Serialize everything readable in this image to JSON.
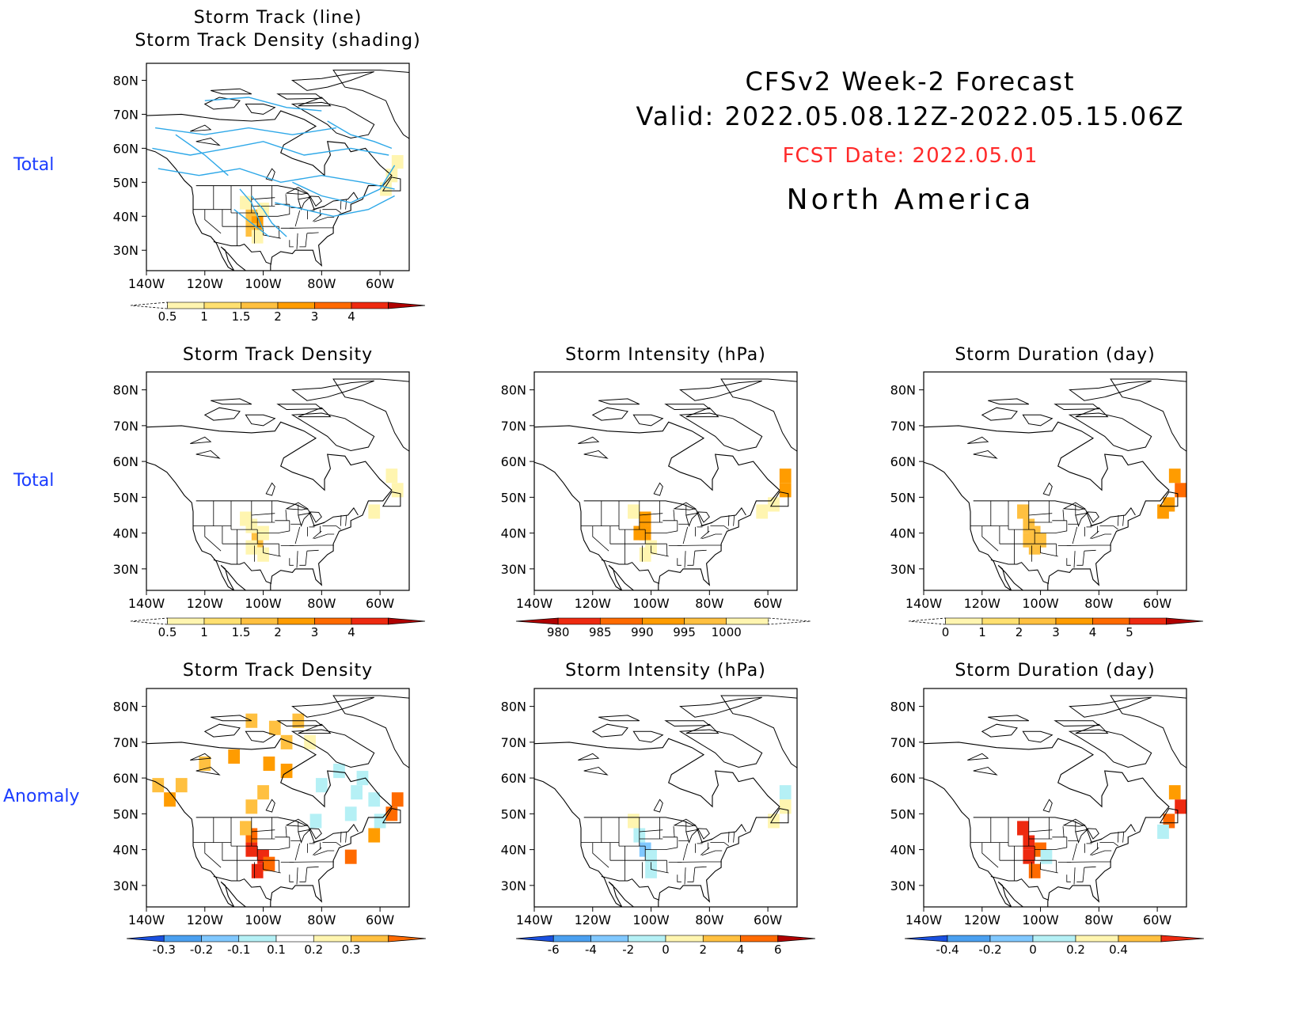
{
  "header": {
    "line1": "CFSv2 Week-2 Forecast",
    "line2": "Valid: 2022.05.08.12Z-2022.05.15.06Z",
    "fcst": "FCST Date: 2022.05.01",
    "region": "North America"
  },
  "row_labels": {
    "r1": "Total",
    "r2": "Total",
    "r3": "Anomaly"
  },
  "axis": {
    "lat_ticks": [
      "80N",
      "70N",
      "60N",
      "50N",
      "40N",
      "30N"
    ],
    "lon_ticks": [
      "140W",
      "120W",
      "100W",
      "80W",
      "60W"
    ]
  },
  "colors": {
    "yellow_light": "#fff5b0",
    "yellow": "#ffe070",
    "orange_light": "#ffc040",
    "orange": "#ff9c00",
    "orange_dark": "#ff6a00",
    "red": "#ee2a10",
    "dark_red": "#b00000",
    "cyan_light": "#b5f0f5",
    "blue_light": "#80c8ff",
    "blue": "#4aa0f0",
    "blue_dark": "#1a50e0",
    "track": "#2ea8e8"
  },
  "chart_data": [
    {
      "type": "heatmap",
      "title": "Storm Track (line)",
      "subtitle": "Storm Track Density (shading)",
      "colorbar_labels": [
        "0.5",
        "1",
        "1.5",
        "2",
        "3",
        "4"
      ],
      "colorbar": "seq",
      "cells": [
        {
          "lon": -104,
          "lat": 40,
          "level": 2
        },
        {
          "lon": -102,
          "lat": 38,
          "level": 3
        },
        {
          "lon": -104,
          "lat": 36,
          "level": 2
        },
        {
          "lon": -100,
          "lat": 42,
          "level": 1
        },
        {
          "lon": -106,
          "lat": 44,
          "level": 1
        },
        {
          "lon": -102,
          "lat": 34,
          "level": 1
        },
        {
          "lon": -56,
          "lat": 52,
          "level": 1
        },
        {
          "lon": -54,
          "lat": 56,
          "level": 1
        },
        {
          "lon": -58,
          "lat": 48,
          "level": 1
        }
      ],
      "tracks": [
        [
          [
            -137,
            66
          ],
          [
            -120,
            64
          ],
          [
            -105,
            66
          ],
          [
            -90,
            64
          ],
          [
            -75,
            66
          ]
        ],
        [
          [
            -138,
            60
          ],
          [
            -125,
            58
          ],
          [
            -112,
            60
          ],
          [
            -100,
            62
          ],
          [
            -86,
            58
          ],
          [
            -70,
            60
          ],
          [
            -57,
            58
          ]
        ],
        [
          [
            -136,
            54
          ],
          [
            -122,
            52
          ],
          [
            -108,
            54
          ],
          [
            -94,
            50
          ],
          [
            -80,
            52
          ],
          [
            -66,
            50
          ],
          [
            -55,
            48
          ]
        ],
        [
          [
            -108,
            48
          ],
          [
            -104,
            44
          ],
          [
            -102,
            40
          ],
          [
            -100,
            36
          ]
        ],
        [
          [
            -104,
            46
          ],
          [
            -100,
            42
          ],
          [
            -97,
            38
          ],
          [
            -92,
            34
          ]
        ],
        [
          [
            -110,
            42
          ],
          [
            -104,
            38
          ],
          [
            -98,
            34
          ]
        ],
        [
          [
            -96,
            44
          ],
          [
            -86,
            42
          ],
          [
            -76,
            40
          ],
          [
            -64,
            42
          ],
          [
            -55,
            46
          ]
        ],
        [
          [
            -90,
            50
          ],
          [
            -80,
            46
          ],
          [
            -70,
            44
          ],
          [
            -60,
            48
          ],
          [
            -55,
            55
          ]
        ],
        [
          [
            -120,
            74
          ],
          [
            -105,
            75
          ],
          [
            -92,
            72
          ],
          [
            -80,
            71
          ]
        ],
        [
          [
            -130,
            64
          ],
          [
            -120,
            58
          ],
          [
            -112,
            52
          ]
        ],
        [
          [
            -78,
            68
          ],
          [
            -70,
            64
          ],
          [
            -62,
            62
          ],
          [
            -56,
            60
          ]
        ]
      ]
    },
    {
      "type": "heatmap",
      "title": "Storm Track Density",
      "colorbar_labels": [
        "0.5",
        "1",
        "1.5",
        "2",
        "3",
        "4"
      ],
      "colorbar": "seq",
      "cells": [
        {
          "lon": -104,
          "lat": 42,
          "level": 1
        },
        {
          "lon": -102,
          "lat": 38,
          "level": 2
        },
        {
          "lon": -104,
          "lat": 36,
          "level": 1
        },
        {
          "lon": -100,
          "lat": 40,
          "level": 1
        },
        {
          "lon": -106,
          "lat": 44,
          "level": 1
        },
        {
          "lon": -100,
          "lat": 34,
          "level": 1
        },
        {
          "lon": -54,
          "lat": 52,
          "level": 1
        },
        {
          "lon": -56,
          "lat": 56,
          "level": 1
        },
        {
          "lon": -62,
          "lat": 46,
          "level": 1
        }
      ]
    },
    {
      "type": "heatmap",
      "title": "Storm Intensity (hPa)",
      "colorbar_labels": [
        "980",
        "985",
        "990",
        "995",
        "1000"
      ],
      "colorbar": "rev",
      "cells": [
        {
          "lon": -102,
          "lat": 44,
          "level": 2
        },
        {
          "lon": -104,
          "lat": 40,
          "level": 2
        },
        {
          "lon": -102,
          "lat": 40,
          "level": 2
        },
        {
          "lon": -106,
          "lat": 46,
          "level": 1
        },
        {
          "lon": -100,
          "lat": 36,
          "level": 1
        },
        {
          "lon": -102,
          "lat": 34,
          "level": 1
        },
        {
          "lon": -54,
          "lat": 56,
          "level": 2
        },
        {
          "lon": -54,
          "lat": 52,
          "level": 2
        },
        {
          "lon": -58,
          "lat": 48,
          "level": 1
        },
        {
          "lon": -62,
          "lat": 46,
          "level": 1
        }
      ]
    },
    {
      "type": "heatmap",
      "title": "Storm Duration (day)",
      "colorbar_labels": [
        "0",
        "1",
        "2",
        "3",
        "4",
        "5"
      ],
      "colorbar": "seq",
      "cells": [
        {
          "lon": -106,
          "lat": 46,
          "level": 2
        },
        {
          "lon": -104,
          "lat": 42,
          "level": 2
        },
        {
          "lon": -102,
          "lat": 40,
          "level": 2
        },
        {
          "lon": -104,
          "lat": 38,
          "level": 2
        },
        {
          "lon": -102,
          "lat": 36,
          "level": 2
        },
        {
          "lon": -100,
          "lat": 38,
          "level": 2
        },
        {
          "lon": -54,
          "lat": 56,
          "level": 3
        },
        {
          "lon": -52,
          "lat": 52,
          "level": 4
        },
        {
          "lon": -56,
          "lat": 48,
          "level": 3
        },
        {
          "lon": -58,
          "lat": 46,
          "level": 3
        }
      ]
    },
    {
      "type": "heatmap",
      "title": "Storm Track Density",
      "colorbar_labels": [
        "-0.3",
        "-0.2",
        "-0.1",
        "0.1",
        "0.2",
        "0.3"
      ],
      "colorbar": "div",
      "cells": [
        {
          "lon": -104,
          "lat": 44,
          "level": 4
        },
        {
          "lon": -104,
          "lat": 40,
          "level": 5
        },
        {
          "lon": -100,
          "lat": 38,
          "level": 5
        },
        {
          "lon": -102,
          "lat": 34,
          "level": 5
        },
        {
          "lon": -98,
          "lat": 36,
          "level": 4
        },
        {
          "lon": -106,
          "lat": 46,
          "level": 2
        },
        {
          "lon": -132,
          "lat": 54,
          "level": 3
        },
        {
          "lon": -136,
          "lat": 58,
          "level": 2
        },
        {
          "lon": -128,
          "lat": 58,
          "level": 2
        },
        {
          "lon": -120,
          "lat": 64,
          "level": 2
        },
        {
          "lon": -110,
          "lat": 66,
          "level": 3
        },
        {
          "lon": -98,
          "lat": 64,
          "level": 3
        },
        {
          "lon": -92,
          "lat": 62,
          "level": 3
        },
        {
          "lon": -100,
          "lat": 56,
          "level": 2
        },
        {
          "lon": -104,
          "lat": 52,
          "level": 2
        },
        {
          "lon": -104,
          "lat": 76,
          "level": 2
        },
        {
          "lon": -96,
          "lat": 74,
          "level": 2
        },
        {
          "lon": -88,
          "lat": 76,
          "level": 2
        },
        {
          "lon": -92,
          "lat": 70,
          "level": 2
        },
        {
          "lon": -84,
          "lat": 70,
          "level": 1
        },
        {
          "lon": -70,
          "lat": 38,
          "level": 4
        },
        {
          "lon": -62,
          "lat": 44,
          "level": 3
        },
        {
          "lon": -56,
          "lat": 50,
          "level": 4
        },
        {
          "lon": -54,
          "lat": 54,
          "level": 4
        },
        {
          "lon": -80,
          "lat": 58,
          "level": -1
        },
        {
          "lon": -74,
          "lat": 62,
          "level": -1
        },
        {
          "lon": -68,
          "lat": 56,
          "level": -1
        },
        {
          "lon": -70,
          "lat": 50,
          "level": -1
        },
        {
          "lon": -62,
          "lat": 54,
          "level": -1
        },
        {
          "lon": -60,
          "lat": 48,
          "level": -1
        },
        {
          "lon": -82,
          "lat": 48,
          "level": -1
        },
        {
          "lon": -66,
          "lat": 60,
          "level": -1
        }
      ]
    },
    {
      "type": "heatmap",
      "title": "Storm Intensity (hPa)",
      "colorbar_labels": [
        "-6",
        "-4",
        "-2",
        "0",
        "2",
        "4",
        "6"
      ],
      "colorbar": "div",
      "cells": [
        {
          "lon": -104,
          "lat": 44,
          "level": -1
        },
        {
          "lon": -102,
          "lat": 40,
          "level": -2
        },
        {
          "lon": -100,
          "lat": 38,
          "level": -1
        },
        {
          "lon": -100,
          "lat": 34,
          "level": -1
        },
        {
          "lon": -106,
          "lat": 48,
          "level": 1
        },
        {
          "lon": -54,
          "lat": 56,
          "level": -1
        },
        {
          "lon": -54,
          "lat": 52,
          "level": 1
        },
        {
          "lon": -58,
          "lat": 48,
          "level": 1
        }
      ]
    },
    {
      "type": "heatmap",
      "title": "Storm Duration (day)",
      "colorbar_labels": [
        "-0.4",
        "-0.2",
        "0",
        "0.2",
        "0.4"
      ],
      "colorbar": "div",
      "cells": [
        {
          "lon": -106,
          "lat": 46,
          "level": 5
        },
        {
          "lon": -104,
          "lat": 42,
          "level": 5
        },
        {
          "lon": -104,
          "lat": 38,
          "level": 5
        },
        {
          "lon": -102,
          "lat": 34,
          "level": 4
        },
        {
          "lon": -100,
          "lat": 40,
          "level": 4
        },
        {
          "lon": -98,
          "lat": 38,
          "level": -1
        },
        {
          "lon": -54,
          "lat": 56,
          "level": 3
        },
        {
          "lon": -52,
          "lat": 52,
          "level": 5
        },
        {
          "lon": -56,
          "lat": 48,
          "level": 4
        },
        {
          "lon": -58,
          "lat": 45,
          "level": -1
        }
      ]
    }
  ]
}
